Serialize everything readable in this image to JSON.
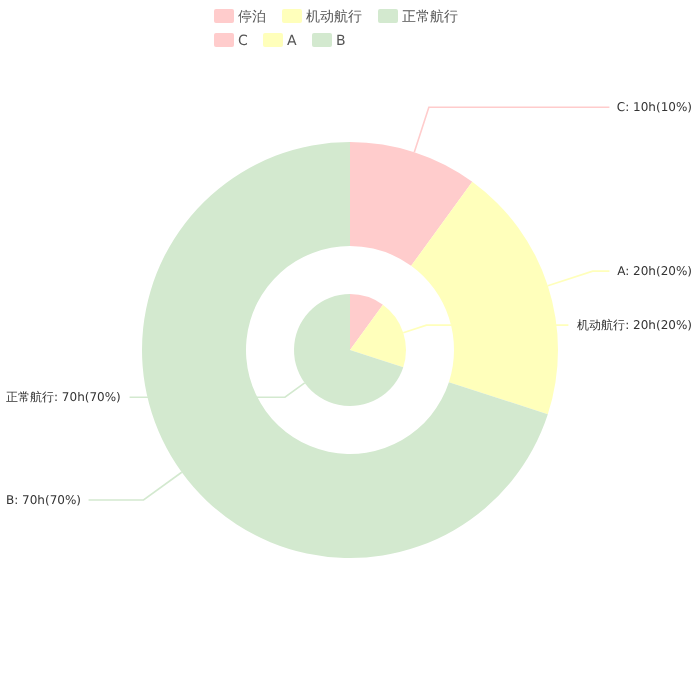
{
  "chart_data": [
    {
      "type": "pie",
      "categories": [
        "停泊",
        "机动航行",
        "正常航行"
      ],
      "values": [
        10,
        20,
        70
      ],
      "colors": [
        "#ffcccc",
        "#ffffbb",
        "#d3e9cf"
      ],
      "value_labels": [
        null,
        "机动航行: 20h(20%)",
        "正常航行: 70h(70%)"
      ],
      "legend": "top"
    },
    {
      "type": "donut",
      "categories": [
        "C",
        "A",
        "B"
      ],
      "values": [
        10,
        20,
        70
      ],
      "colors": [
        "#ffcccc",
        "#ffffbb",
        "#d3e9cf"
      ],
      "value_labels": [
        "C: 10h(10%)",
        "A: 20h(20%)",
        "B: 70h(70%)"
      ],
      "legend": "top"
    }
  ]
}
